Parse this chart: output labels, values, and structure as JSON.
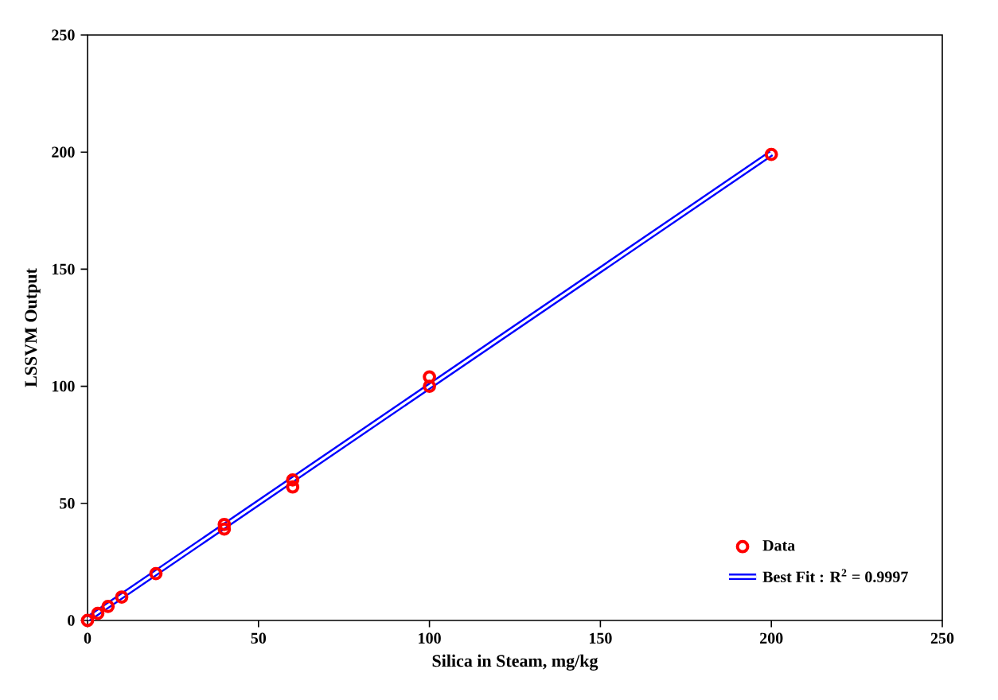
{
  "chart_data": {
    "type": "scatter",
    "xlabel": "Silica in Steam, mg/kg",
    "ylabel": "LSSVM Output",
    "xlim": [
      0,
      250
    ],
    "ylim": [
      0,
      250
    ],
    "xticks": [
      0,
      50,
      100,
      150,
      200,
      250
    ],
    "yticks": [
      0,
      50,
      100,
      150,
      200,
      250
    ],
    "grid": false,
    "legend": "bottom right",
    "marker": "circle",
    "series": [
      {
        "name": "Data",
        "color": "#ff0000",
        "x": [
          0,
          3,
          6,
          10,
          20,
          40,
          40,
          60,
          60,
          100,
          100,
          200
        ],
        "values": [
          0,
          3,
          6,
          10,
          20,
          41,
          39,
          60,
          57,
          104,
          100,
          199
        ]
      },
      {
        "name": "Best Fit :  R$^{2}$ = 0.9997",
        "type": "line",
        "color": "#0000ff",
        "marker": "none",
        "x": [
          0,
          200
        ],
        "values": [
          0.5,
          199.5
        ]
      }
    ]
  }
}
